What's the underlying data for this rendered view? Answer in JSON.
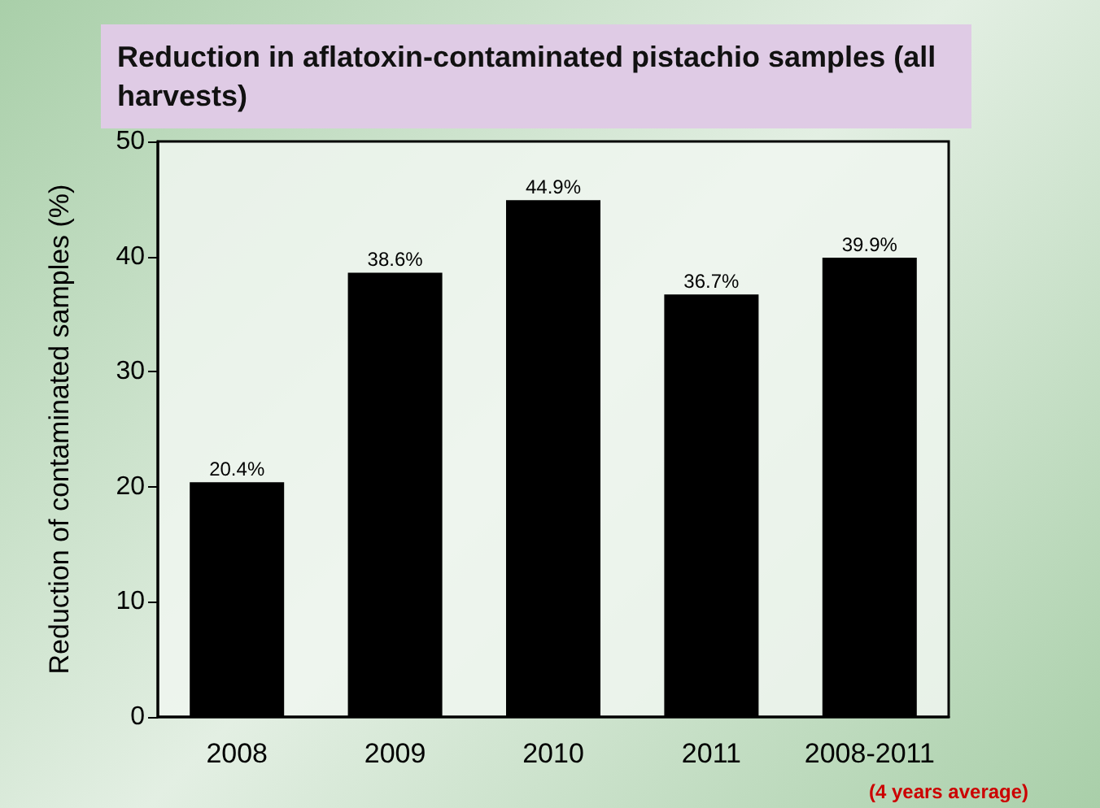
{
  "chart_data": {
    "type": "bar",
    "title": "Reduction in aflatoxin-contaminated pistachio samples (all harvests)",
    "ylabel": "Reduction of contaminated samples (%)",
    "categories": [
      "2008",
      "2009",
      "2010",
      "2011",
      "2008-2011"
    ],
    "values": [
      20.4,
      38.6,
      44.9,
      36.7,
      39.9
    ],
    "value_labels": [
      "20.4%",
      "38.6%",
      "44.9%",
      "36.7%",
      "39.9%"
    ],
    "color": "#000000",
    "ylim": [
      0,
      50
    ],
    "yticks": [
      0,
      10,
      20,
      30,
      40,
      50
    ],
    "grid": false,
    "annotations": [
      "(4 years average)"
    ]
  }
}
